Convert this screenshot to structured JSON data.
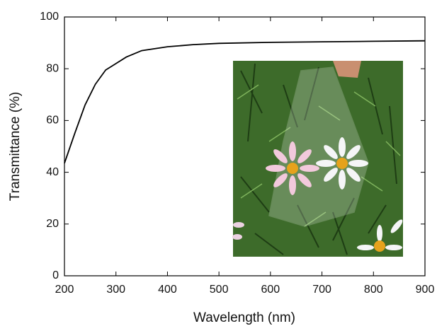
{
  "chart_data": {
    "type": "line",
    "xlabel": "Wavelength (nm)",
    "ylabel": "Transmittance (%)",
    "x": [
      200,
      220,
      240,
      260,
      280,
      300,
      320,
      350,
      400,
      450,
      500,
      600,
      700,
      800,
      900
    ],
    "series": [
      {
        "color": "#000000",
        "values": [
          43.5,
          55,
          66,
          74,
          79.5,
          82,
          84.5,
          87,
          88.5,
          89.3,
          89.8,
          90.2,
          90.4,
          90.6,
          90.8
        ]
      }
    ],
    "xlim": [
      200,
      900
    ],
    "xticks": [
      200,
      300,
      400,
      500,
      600,
      700,
      800,
      900
    ],
    "ylim": [
      0,
      100
    ],
    "yticks": [
      0,
      20,
      40,
      60,
      80,
      100
    ],
    "grid": false
  }
}
